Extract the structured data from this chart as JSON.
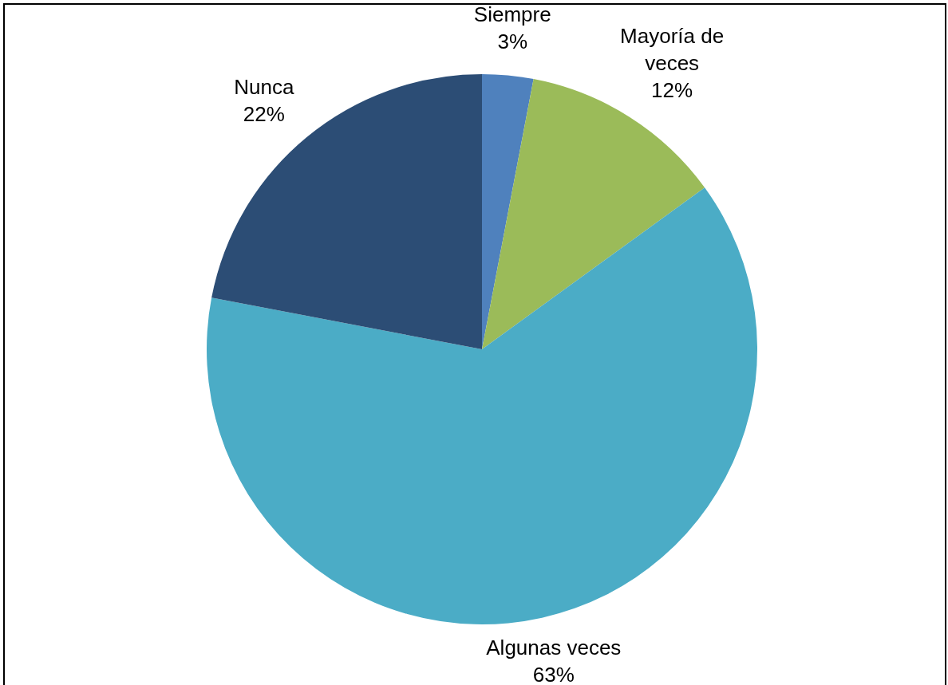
{
  "chart_data": {
    "type": "pie",
    "categories": [
      "Siempre",
      "Mayoría de veces",
      "Algunas veces",
      "Nunca"
    ],
    "values": [
      3,
      12,
      63,
      22
    ],
    "value_labels": [
      "3%",
      "12%",
      "63%",
      "22%"
    ],
    "colors": [
      "#4f81bd",
      "#9bbb59",
      "#4bacc6",
      "#2c4d75"
    ],
    "legend": false
  }
}
